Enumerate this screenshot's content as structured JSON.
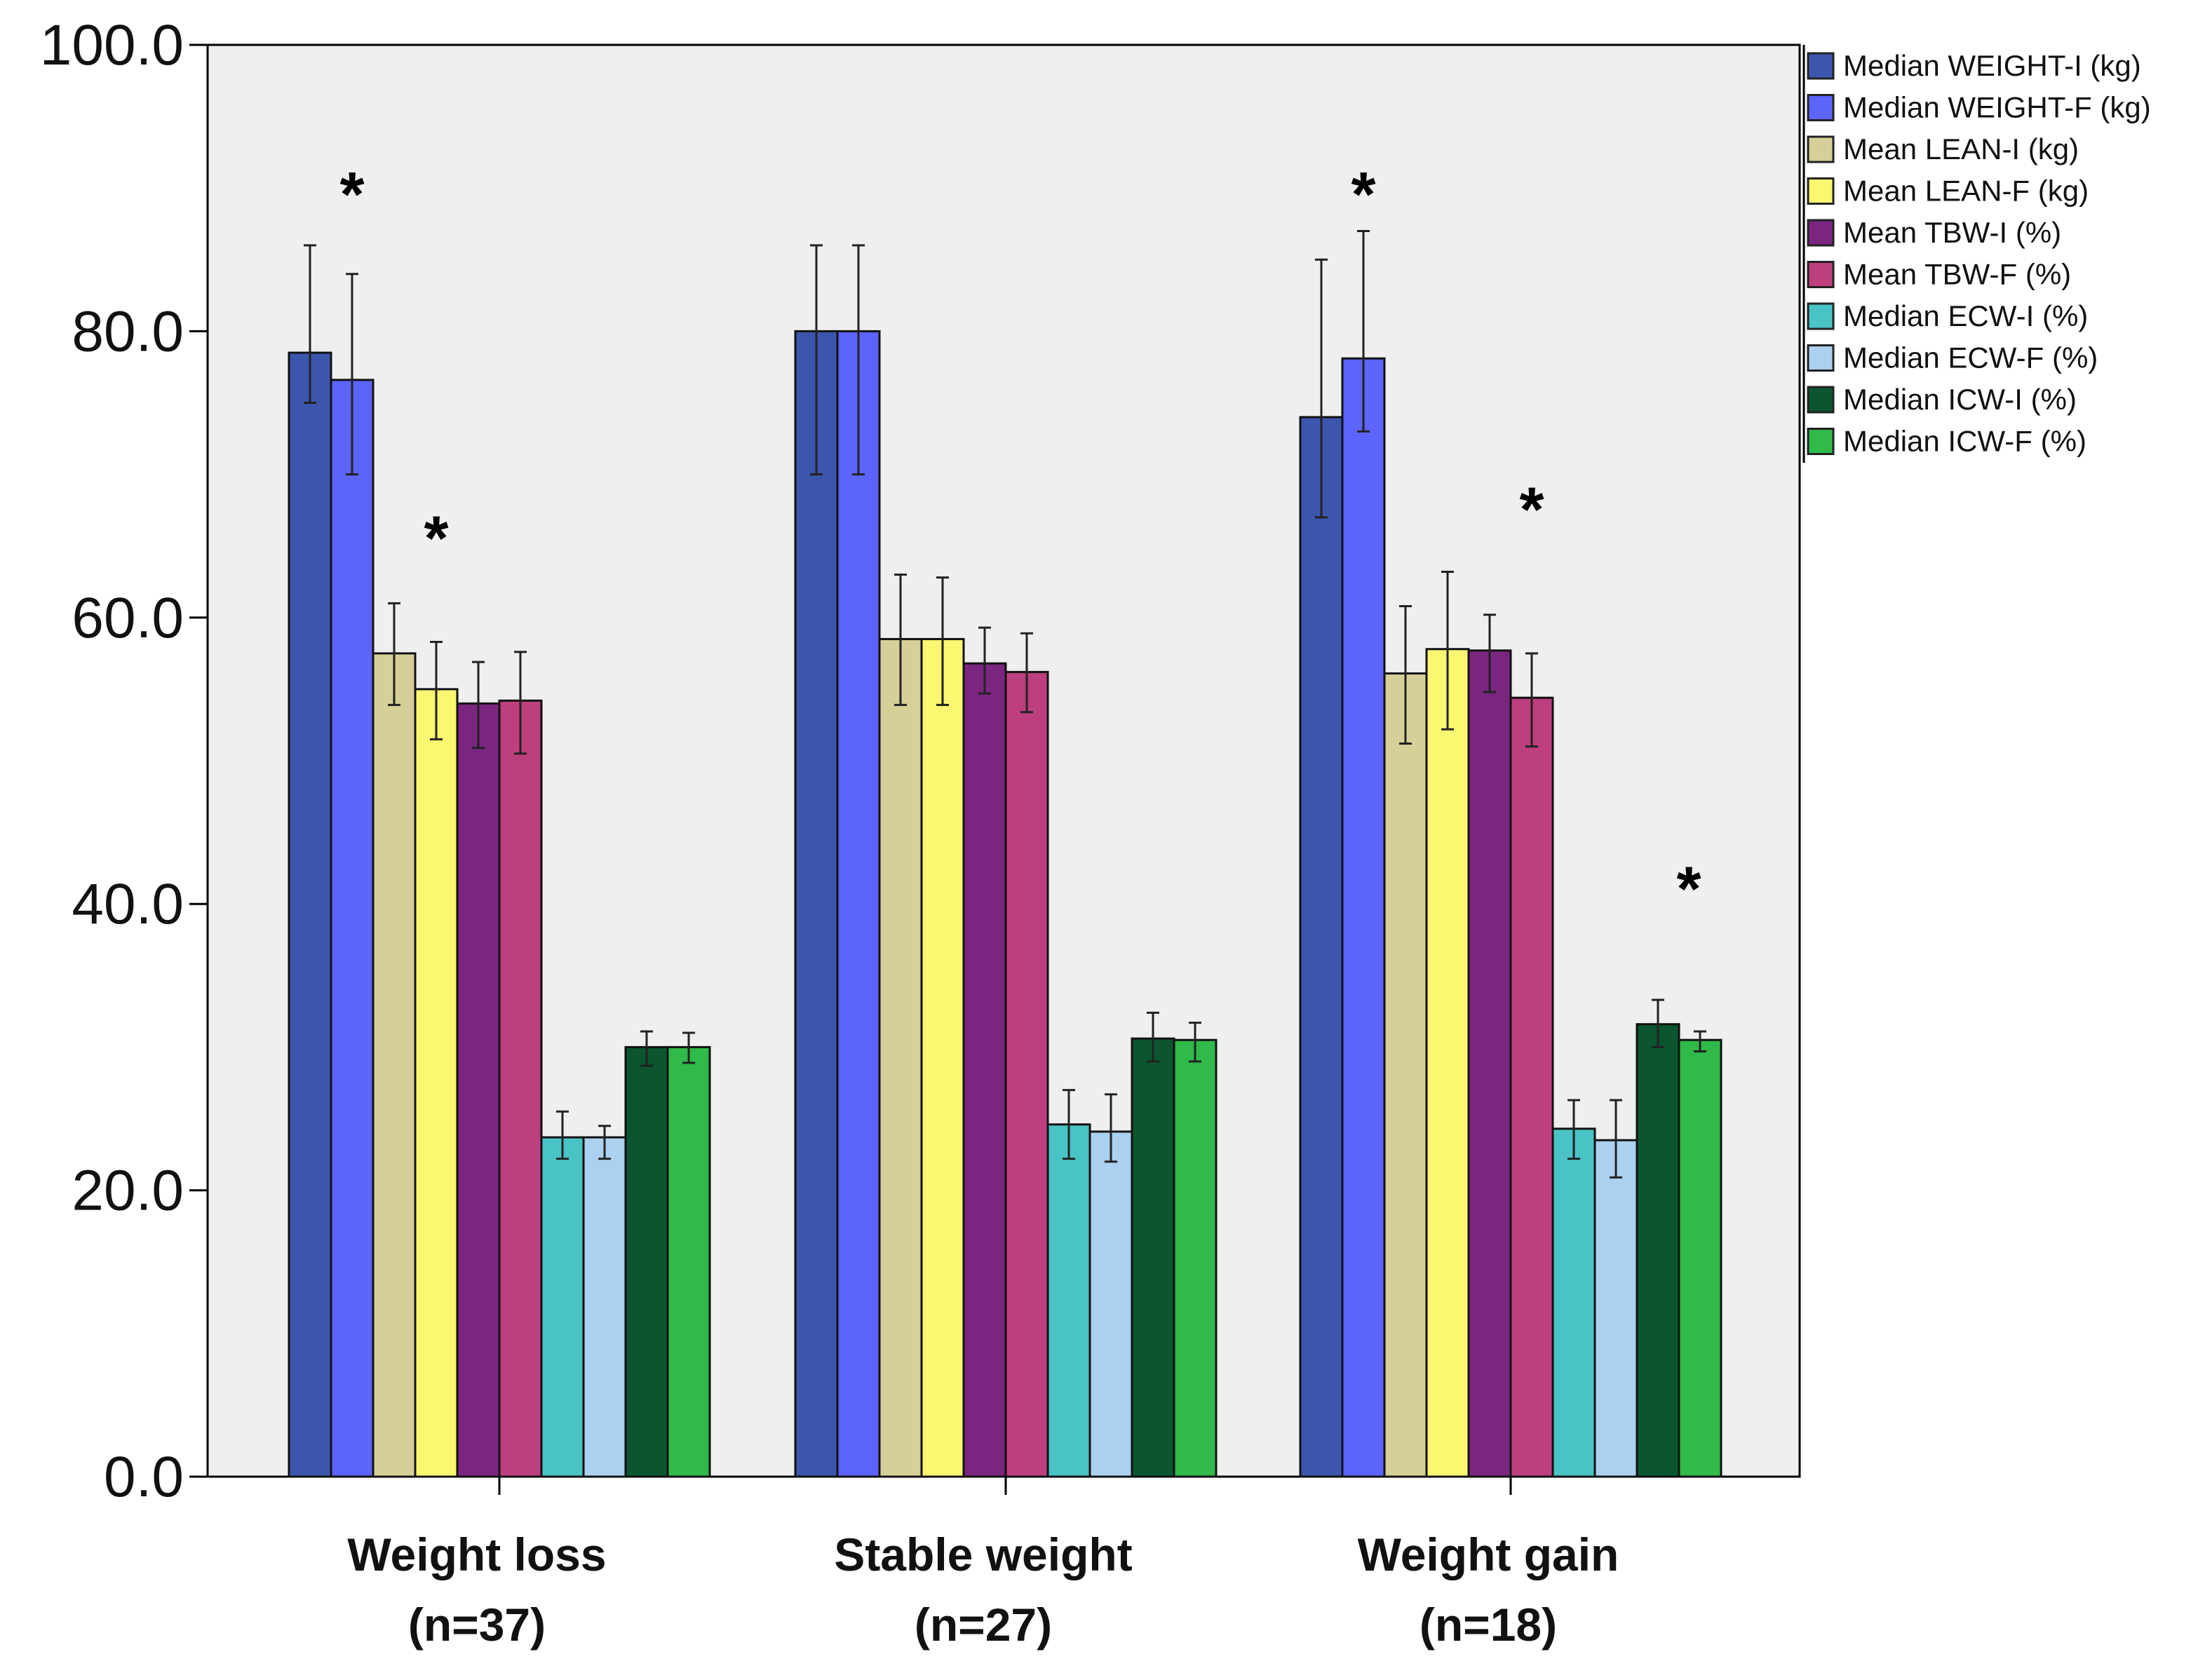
{
  "chart_data": {
    "type": "bar",
    "title": "",
    "xlabel": "",
    "ylabel": "",
    "ylim": [
      0,
      100
    ],
    "yticks": [
      "0.0",
      "20.0",
      "40.0",
      "60.0",
      "80.0",
      "100.0"
    ],
    "ytick_values": [
      0,
      20,
      40,
      60,
      80,
      100
    ],
    "grid": false,
    "legend_position": "right",
    "categories": [
      {
        "line1": "Weight loss",
        "line2": "(n=37)"
      },
      {
        "line1": "Stable weight",
        "line2": "(n=27)"
      },
      {
        "line1": "Weight gain",
        "line2": "(n=18)"
      }
    ],
    "series": [
      {
        "name": "Median WEIGHT-I (kg)",
        "color": "#3d56ad",
        "values": [
          78.5,
          80.0,
          74.0
        ],
        "err_low": [
          75.0,
          70.0,
          67.0
        ],
        "err_high": [
          86.0,
          86.0,
          85.0
        ]
      },
      {
        "name": "Median WEIGHT-F (kg)",
        "color": "#5c64fb",
        "values": [
          76.6,
          80.0,
          78.1
        ],
        "err_low": [
          70.0,
          70.0,
          73.0
        ],
        "err_high": [
          84.0,
          86.0,
          87.0
        ]
      },
      {
        "name": "Mean LEAN-I (kg)",
        "color": "#d6cf98",
        "values": [
          57.5,
          58.5,
          56.1
        ],
        "err_low": [
          53.9,
          53.9,
          51.2
        ],
        "err_high": [
          61.0,
          63.0,
          60.8
        ]
      },
      {
        "name": "Mean LEAN-F (kg)",
        "color": "#fbf770",
        "values": [
          55.0,
          58.5,
          57.8
        ],
        "err_low": [
          51.5,
          53.9,
          52.2
        ],
        "err_high": [
          58.3,
          62.8,
          63.2
        ]
      },
      {
        "name": "Mean TBW-I (%)",
        "color": "#7a2681",
        "values": [
          54.0,
          56.8,
          57.7
        ],
        "err_low": [
          50.9,
          54.7,
          54.8
        ],
        "err_high": [
          56.9,
          59.3,
          60.2
        ]
      },
      {
        "name": "Mean TBW-F (%)",
        "color": "#bd3f7d",
        "values": [
          54.2,
          56.2,
          54.4
        ],
        "err_low": [
          50.5,
          53.4,
          51.0
        ],
        "err_high": [
          57.6,
          58.9,
          57.5
        ]
      },
      {
        "name": "Median ECW-I (%)",
        "color": "#49c3c6",
        "values": [
          23.7,
          24.6,
          24.3
        ],
        "err_low": [
          22.2,
          22.2,
          22.2
        ],
        "err_high": [
          25.5,
          27.0,
          26.3
        ]
      },
      {
        "name": "Median ECW-F (%)",
        "color": "#acd0ef",
        "values": [
          23.7,
          24.1,
          23.5
        ],
        "err_low": [
          22.2,
          22.0,
          20.9
        ],
        "err_high": [
          24.5,
          26.7,
          26.3
        ]
      },
      {
        "name": "Median ICW-I (%)",
        "color": "#0b5630",
        "values": [
          30.0,
          30.6,
          31.6
        ],
        "err_low": [
          28.7,
          29.0,
          30.0
        ],
        "err_high": [
          31.1,
          32.4,
          33.3
        ]
      },
      {
        "name": "Median ICW-F (%)",
        "color": "#2fba4a",
        "values": [
          30.0,
          30.5,
          30.5
        ],
        "err_low": [
          28.9,
          29.0,
          29.7
        ],
        "err_high": [
          31.0,
          31.7,
          31.1
        ]
      }
    ],
    "annotations": [
      {
        "text": "*",
        "group": 0,
        "series": [
          1
        ],
        "level": 90
      },
      {
        "text": "*",
        "group": 0,
        "series": [
          3
        ],
        "level": 66
      },
      {
        "text": "*",
        "group": 2,
        "series": [
          1
        ],
        "level": 90
      },
      {
        "text": "*",
        "group": 2,
        "series": [
          5
        ],
        "level": 68
      },
      {
        "text": "*",
        "group": 2,
        "series": [
          8,
          9
        ],
        "level": 41.5
      }
    ]
  }
}
